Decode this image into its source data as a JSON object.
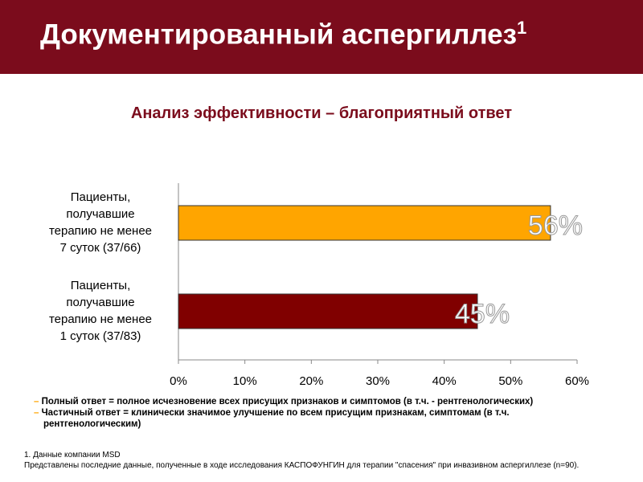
{
  "header": {
    "title": "Документированный аспергиллез",
    "title_note": "1"
  },
  "chart_data": {
    "type": "bar",
    "orientation": "horizontal",
    "title": "Анализ эффективности – благоприятный ответ",
    "categories": [
      "Пациенты,\nполучавшие\nтерапию не менее\n7 суток (37/66)",
      "Пациенты,\nполучавшие\nтерапию не менее\n1 суток (37/83)"
    ],
    "values": [
      56,
      45
    ],
    "value_labels": [
      "56%",
      "45%"
    ],
    "colors": [
      "#ffa500",
      "#800000"
    ],
    "xlim": [
      0,
      60
    ],
    "xticks": [
      {
        "value": 0,
        "label": "0%"
      },
      {
        "value": 10,
        "label": "10%"
      },
      {
        "value": 20,
        "label": "20%"
      },
      {
        "value": 30,
        "label": "30%"
      },
      {
        "value": 40,
        "label": "40%"
      },
      {
        "value": 50,
        "label": "50%"
      },
      {
        "value": 60,
        "label": "60%"
      }
    ],
    "grid": false
  },
  "notes": [
    "Полный ответ = полное исчезновение всех присущих признаков и  симптомов  (в т.ч. - рентгенологических)",
    "Частичный ответ = клинически значимое улучшение по всем  присущим признакам, симптомам  (в т.ч. рентгенологическим)"
  ],
  "footnotes": [
    "1. Данные компании MSD",
    "Представлены последние данные, полученные в ходе исследования КАСПОФУНГИН для терапии \"спасения\" при инвазивном аспергиллезе (n=90)."
  ]
}
